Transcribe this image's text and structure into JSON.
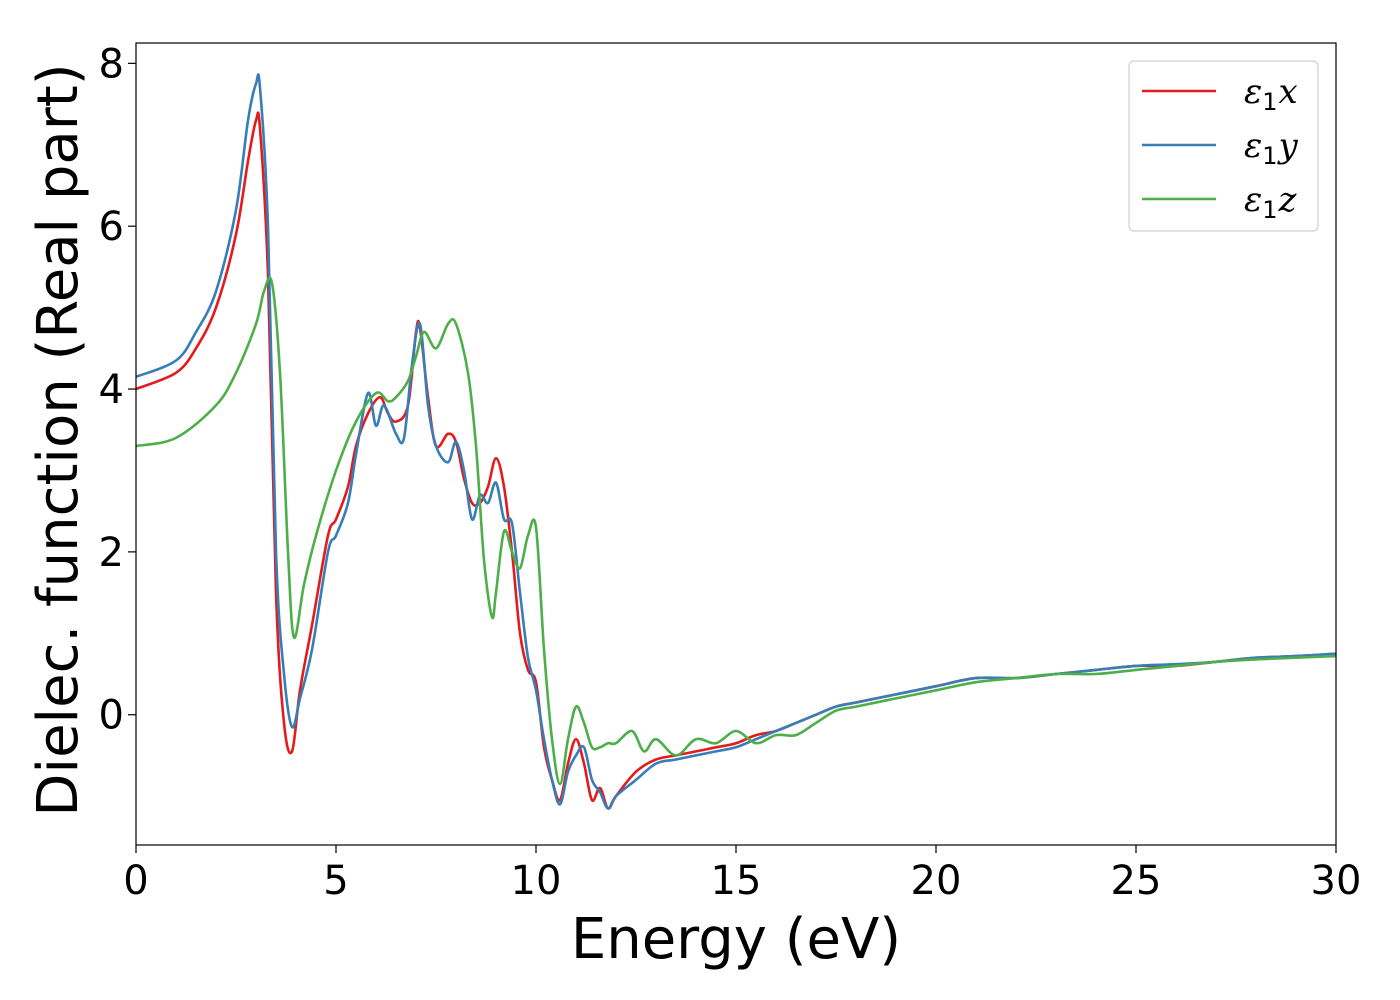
{
  "chart_data": {
    "type": "line",
    "title": "",
    "xlabel": "Energy (eV)",
    "ylabel": "Dielec. function (Real part)",
    "xlim": [
      0,
      30
    ],
    "ylim": [
      -1.6,
      8.25
    ],
    "xticks": [
      0,
      5,
      10,
      15,
      20,
      25,
      30
    ],
    "yticks": [
      0,
      2,
      4,
      6,
      8
    ],
    "xtick_labels": [
      "0",
      "5",
      "10",
      "15",
      "20",
      "25",
      "30"
    ],
    "ytick_labels": [
      "0",
      "2",
      "4",
      "6",
      "8"
    ],
    "grid": false,
    "legend_position": "top-right",
    "series": [
      {
        "name": "ε₁x",
        "legend_main": "ε",
        "legend_sub": "1",
        "legend_tail": "x",
        "color": "#e41a1c",
        "x": [
          0,
          1,
          1.5,
          2,
          2.5,
          2.8,
          3.0,
          3.1,
          3.3,
          3.5,
          3.7,
          3.9,
          4.1,
          4.4,
          4.8,
          5.0,
          5.3,
          5.5,
          5.8,
          6.1,
          6.3,
          6.5,
          6.8,
          7.0,
          7.1,
          7.3,
          7.5,
          7.8,
          8.0,
          8.2,
          8.4,
          8.6,
          8.8,
          9.0,
          9.2,
          9.4,
          9.6,
          9.8,
          10.0,
          10.2,
          10.4,
          10.6,
          10.8,
          11.0,
          11.2,
          11.4,
          11.6,
          11.8,
          12.0,
          12.5,
          13.0,
          13.5,
          14.0,
          14.5,
          15.0,
          15.5,
          16.0,
          16.5,
          17.0,
          17.5,
          18.0,
          19.0,
          20.0,
          21.0,
          22.0,
          23.0,
          24.0,
          25.0,
          26.0,
          27.0,
          28.0,
          29.0,
          30.0
        ],
        "y": [
          4.0,
          4.2,
          4.5,
          5.0,
          5.9,
          6.8,
          7.3,
          7.2,
          5.4,
          1.5,
          -0.1,
          -0.45,
          0.3,
          1.1,
          2.2,
          2.4,
          2.8,
          3.3,
          3.7,
          3.9,
          3.7,
          3.6,
          3.8,
          4.7,
          4.75,
          3.9,
          3.3,
          3.45,
          3.35,
          2.9,
          2.6,
          2.6,
          2.8,
          3.15,
          2.8,
          2.0,
          1.0,
          0.55,
          0.4,
          -0.4,
          -0.8,
          -1.05,
          -0.6,
          -0.3,
          -0.6,
          -1.05,
          -0.9,
          -1.15,
          -1.0,
          -0.7,
          -0.55,
          -0.5,
          -0.45,
          -0.4,
          -0.35,
          -0.25,
          -0.2,
          -0.1,
          0.0,
          0.1,
          0.15,
          0.25,
          0.35,
          0.45,
          0.45,
          0.5,
          0.55,
          0.6,
          0.6,
          0.65,
          0.7,
          0.72,
          0.75
        ]
      },
      {
        "name": "ε₁y",
        "legend_main": "ε",
        "legend_sub": "1",
        "legend_tail": "y",
        "color": "#377eb8",
        "x": [
          0,
          1,
          1.5,
          2,
          2.5,
          2.8,
          3.0,
          3.1,
          3.3,
          3.5,
          3.7,
          3.9,
          4.1,
          4.4,
          4.8,
          5.0,
          5.3,
          5.5,
          5.8,
          6.0,
          6.2,
          6.5,
          6.7,
          6.9,
          7.1,
          7.3,
          7.5,
          7.8,
          8.0,
          8.2,
          8.4,
          8.6,
          8.8,
          9.0,
          9.2,
          9.4,
          9.6,
          9.8,
          10.0,
          10.2,
          10.4,
          10.6,
          10.8,
          11.0,
          11.2,
          11.4,
          11.6,
          11.8,
          12.0,
          12.5,
          13.0,
          13.5,
          14.0,
          14.5,
          15.0,
          15.5,
          16.0,
          16.5,
          17.0,
          17.5,
          18.0,
          19.0,
          20.0,
          21.0,
          22.0,
          23.0,
          24.0,
          25.0,
          26.0,
          27.0,
          28.0,
          29.0,
          30.0
        ],
        "y": [
          4.15,
          4.35,
          4.7,
          5.2,
          6.2,
          7.3,
          7.75,
          7.7,
          6.0,
          2.0,
          0.5,
          -0.15,
          0.2,
          0.8,
          2.0,
          2.2,
          2.6,
          3.2,
          3.95,
          3.55,
          3.8,
          3.45,
          3.4,
          4.3,
          4.8,
          3.8,
          3.3,
          3.1,
          3.35,
          3.0,
          2.4,
          2.7,
          2.6,
          2.85,
          2.4,
          2.35,
          1.5,
          0.7,
          0.3,
          -0.3,
          -0.8,
          -1.1,
          -0.7,
          -0.5,
          -0.4,
          -0.8,
          -0.95,
          -1.15,
          -1.0,
          -0.8,
          -0.6,
          -0.55,
          -0.5,
          -0.45,
          -0.4,
          -0.3,
          -0.2,
          -0.1,
          0.0,
          0.1,
          0.15,
          0.25,
          0.35,
          0.45,
          0.45,
          0.5,
          0.55,
          0.6,
          0.62,
          0.65,
          0.7,
          0.72,
          0.75
        ]
      },
      {
        "name": "ε₁z",
        "legend_main": "ε",
        "legend_sub": "1",
        "legend_tail": "z",
        "color": "#4daf4a",
        "x": [
          0,
          1,
          2,
          2.5,
          3.0,
          3.2,
          3.4,
          3.6,
          3.8,
          3.95,
          4.2,
          4.5,
          5.0,
          5.5,
          6.0,
          6.3,
          6.5,
          6.8,
          7.0,
          7.2,
          7.5,
          7.8,
          8.0,
          8.3,
          8.5,
          8.7,
          8.9,
          9.0,
          9.2,
          9.4,
          9.6,
          9.8,
          10.0,
          10.2,
          10.4,
          10.6,
          10.8,
          11.0,
          11.2,
          11.4,
          11.6,
          11.8,
          12.0,
          12.4,
          12.7,
          13.0,
          13.5,
          14.0,
          14.5,
          15.0,
          15.5,
          16.0,
          16.5,
          17.0,
          17.5,
          18.0,
          19.0,
          20.0,
          21.0,
          22.0,
          23.0,
          24.0,
          25.0,
          26.0,
          27.0,
          28.0,
          29.0,
          30.0
        ],
        "y": [
          3.3,
          3.4,
          3.8,
          4.2,
          4.8,
          5.2,
          5.3,
          4.2,
          2.0,
          0.95,
          1.6,
          2.2,
          3.0,
          3.6,
          3.95,
          3.85,
          3.9,
          4.1,
          4.4,
          4.7,
          4.5,
          4.8,
          4.8,
          4.2,
          3.3,
          1.9,
          1.2,
          1.5,
          2.25,
          2.0,
          1.8,
          2.2,
          2.3,
          0.8,
          -0.3,
          -0.85,
          -0.3,
          0.1,
          -0.1,
          -0.4,
          -0.4,
          -0.35,
          -0.35,
          -0.2,
          -0.45,
          -0.3,
          -0.5,
          -0.3,
          -0.35,
          -0.2,
          -0.35,
          -0.25,
          -0.25,
          -0.1,
          0.05,
          0.1,
          0.2,
          0.3,
          0.4,
          0.45,
          0.5,
          0.5,
          0.55,
          0.6,
          0.65,
          0.68,
          0.7,
          0.72
        ]
      }
    ]
  }
}
